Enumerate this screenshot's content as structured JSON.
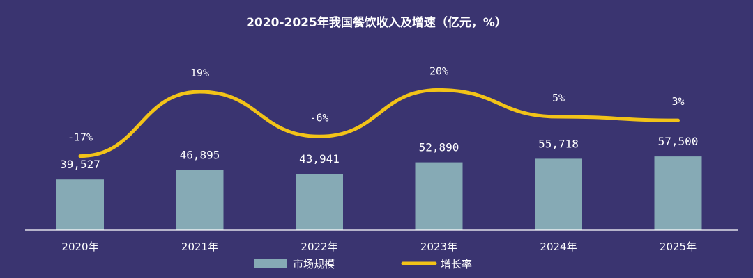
{
  "chart_data": {
    "type": "bar",
    "title": "2020-2025年我国餐饮收入及增速（亿元，%）",
    "categories": [
      "2020年",
      "2021年",
      "2022年",
      "2023年",
      "2024年",
      "2025年"
    ],
    "series": [
      {
        "name": "市场规模",
        "type": "bar",
        "values": [
          39527,
          46895,
          43941,
          52890,
          55718,
          57500
        ],
        "labels": [
          "39,527",
          "46,895",
          "43,941",
          "52,890",
          "55,718",
          "57,500"
        ],
        "color": "#86aab5"
      },
      {
        "name": "增长率",
        "type": "line",
        "values": [
          -17,
          19,
          -6,
          20,
          5,
          3
        ],
        "labels": [
          "-17%",
          "19%",
          "-6%",
          "20%",
          "5%",
          "3%"
        ],
        "color": "#f2c318"
      }
    ],
    "bar_ylim": [
      0,
      120000
    ],
    "line_ylim": [
      -30,
      40
    ],
    "grid": false,
    "legend_position": "bottom-center",
    "colors": {
      "background": "#3a3470",
      "axis": "#ffffff",
      "text": "#ffffff"
    }
  }
}
